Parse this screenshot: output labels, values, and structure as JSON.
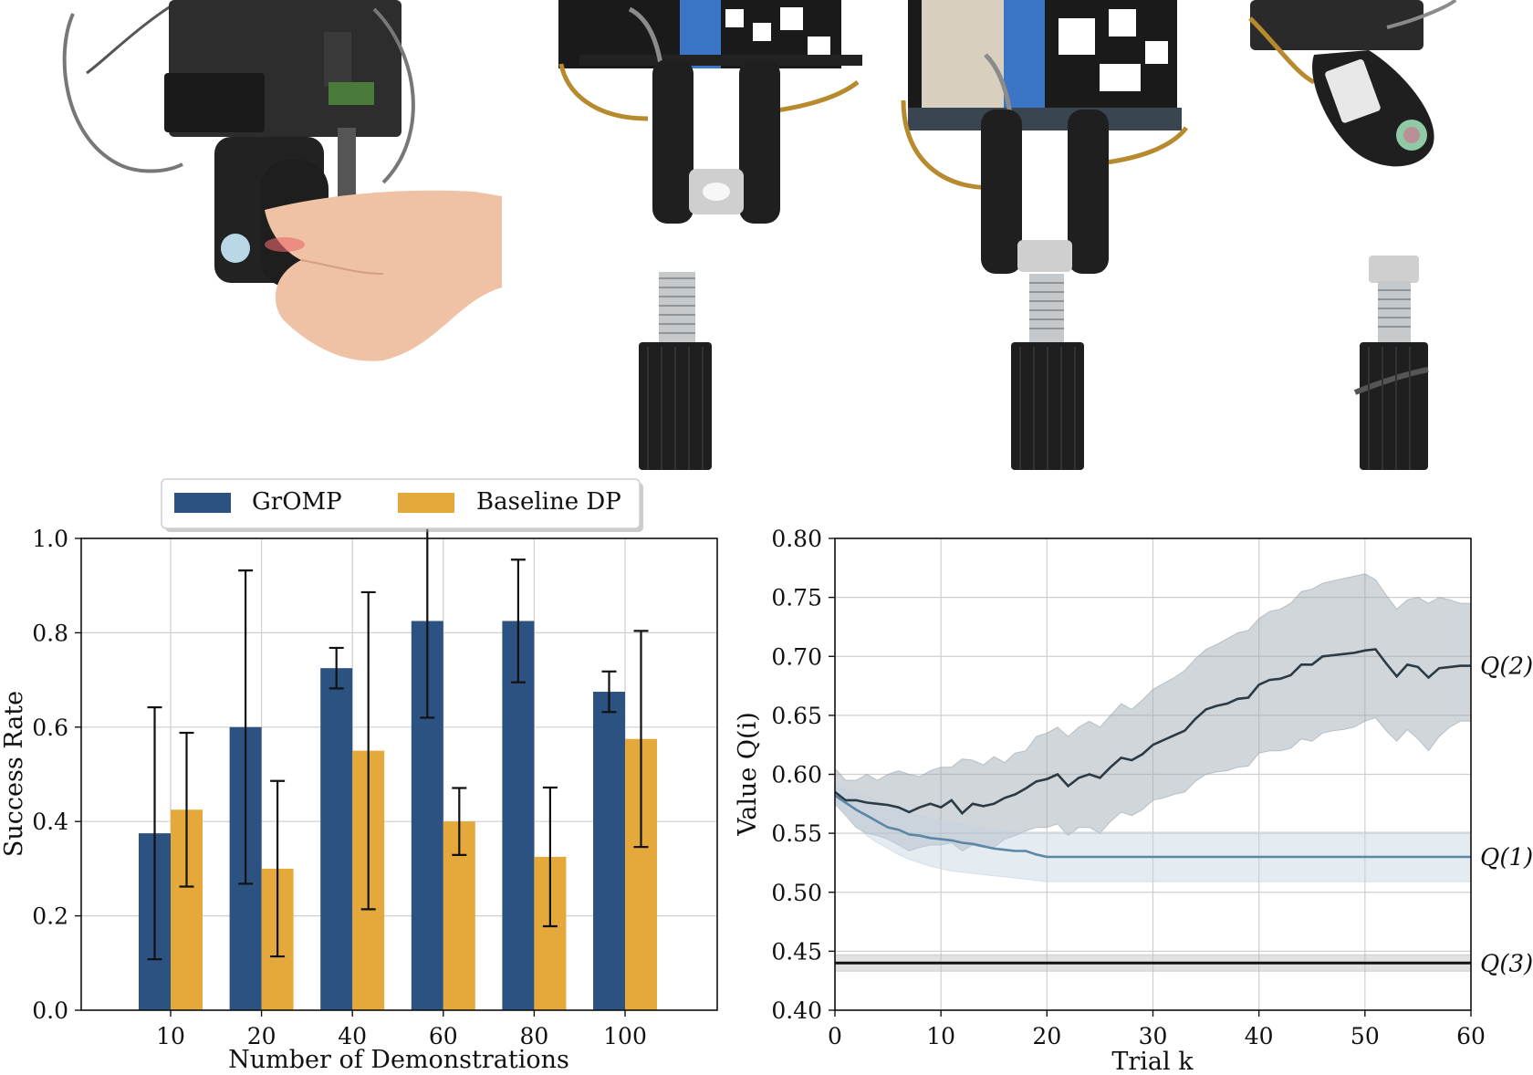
{
  "photos": [
    {
      "name": "photo-gripper-hand-probe"
    },
    {
      "name": "photo-gripper-nut-approach"
    },
    {
      "name": "photo-gripper-nut-on-bolt"
    },
    {
      "name": "photo-gripper-bolt-side"
    }
  ],
  "chart_data": [
    {
      "type": "bar",
      "xlabel": "Number of Demonstrations",
      "ylabel": "Success Rate",
      "ylim": [
        0,
        1.0
      ],
      "yticks": [
        "0.0",
        "0.2",
        "0.4",
        "0.6",
        "0.8",
        "1.0"
      ],
      "categories": [
        "10",
        "20",
        "40",
        "60",
        "80",
        "100"
      ],
      "grid": true,
      "legend_position": "top",
      "series": [
        {
          "name": "GrOMP",
          "color": "#2c5282",
          "values": [
            0.375,
            0.6,
            0.725,
            0.825,
            0.825,
            0.675
          ],
          "err_low": [
            0.108,
            0.268,
            0.682,
            0.62,
            0.695,
            0.632
          ],
          "err_high": [
            0.642,
            0.932,
            0.768,
            1.03,
            0.955,
            0.718
          ]
        },
        {
          "name": "Baseline DP",
          "color": "#e5a93b",
          "values": [
            0.425,
            0.3,
            0.55,
            0.4,
            0.325,
            0.575
          ],
          "err_low": [
            0.262,
            0.114,
            0.214,
            0.329,
            0.178,
            0.346
          ],
          "err_high": [
            0.588,
            0.486,
            0.886,
            0.471,
            0.472,
            0.804
          ]
        }
      ]
    },
    {
      "type": "line",
      "xlabel": "Trial k",
      "ylabel": "Value Q(i)",
      "xlim": [
        0,
        60
      ],
      "ylim": [
        0.4,
        0.8
      ],
      "xticks": [
        "0",
        "10",
        "20",
        "30",
        "40",
        "50",
        "60"
      ],
      "yticks": [
        "0.40",
        "0.45",
        "0.50",
        "0.55",
        "0.60",
        "0.65",
        "0.70",
        "0.75",
        "0.80"
      ],
      "grid": true,
      "series": [
        {
          "name": "Q(2)",
          "color": "#2b3a44",
          "band_color": "#9aa5ad",
          "x": [
            0,
            1,
            2,
            3,
            4,
            5,
            6,
            7,
            8,
            9,
            10,
            11,
            12,
            13,
            14,
            15,
            16,
            17,
            18,
            19,
            20,
            21,
            22,
            23,
            24,
            25,
            26,
            27,
            28,
            29,
            30,
            31,
            32,
            33,
            34,
            35,
            36,
            37,
            38,
            39,
            40,
            41,
            42,
            43,
            44,
            45,
            46,
            47,
            48,
            49,
            50,
            51,
            52,
            53,
            54,
            55,
            56,
            57,
            58,
            59,
            60
          ],
          "y": [
            0.585,
            0.578,
            0.578,
            0.576,
            0.575,
            0.574,
            0.572,
            0.568,
            0.572,
            0.575,
            0.572,
            0.578,
            0.567,
            0.575,
            0.573,
            0.575,
            0.58,
            0.583,
            0.588,
            0.594,
            0.596,
            0.6,
            0.59,
            0.597,
            0.6,
            0.597,
            0.606,
            0.614,
            0.612,
            0.617,
            0.625,
            0.629,
            0.633,
            0.637,
            0.647,
            0.655,
            0.658,
            0.66,
            0.664,
            0.665,
            0.676,
            0.68,
            0.681,
            0.684,
            0.693,
            0.693,
            0.7,
            0.701,
            0.702,
            0.703,
            0.705,
            0.706,
            0.694,
            0.683,
            0.693,
            0.691,
            0.682,
            0.69,
            0.691,
            0.692,
            0.692
          ],
          "lower": [
            0.575,
            0.565,
            0.555,
            0.55,
            0.548,
            0.545,
            0.54,
            0.535,
            0.538,
            0.54,
            0.54,
            0.542,
            0.535,
            0.54,
            0.538,
            0.538,
            0.545,
            0.548,
            0.552,
            0.555,
            0.555,
            0.558,
            0.548,
            0.555,
            0.555,
            0.55,
            0.56,
            0.568,
            0.565,
            0.57,
            0.578,
            0.58,
            0.583,
            0.585,
            0.594,
            0.6,
            0.602,
            0.603,
            0.606,
            0.607,
            0.618,
            0.62,
            0.62,
            0.622,
            0.63,
            0.628,
            0.635,
            0.637,
            0.638,
            0.64,
            0.645,
            0.648,
            0.637,
            0.628,
            0.638,
            0.63,
            0.62,
            0.632,
            0.64,
            0.645,
            0.645
          ],
          "upper": [
            0.605,
            0.595,
            0.595,
            0.6,
            0.595,
            0.6,
            0.603,
            0.6,
            0.598,
            0.603,
            0.606,
            0.606,
            0.613,
            0.612,
            0.608,
            0.615,
            0.61,
            0.618,
            0.62,
            0.632,
            0.635,
            0.64,
            0.632,
            0.64,
            0.645,
            0.64,
            0.65,
            0.66,
            0.655,
            0.663,
            0.672,
            0.677,
            0.682,
            0.688,
            0.698,
            0.706,
            0.71,
            0.715,
            0.72,
            0.722,
            0.732,
            0.738,
            0.74,
            0.745,
            0.755,
            0.757,
            0.762,
            0.764,
            0.766,
            0.768,
            0.77,
            0.765,
            0.752,
            0.74,
            0.748,
            0.75,
            0.745,
            0.75,
            0.748,
            0.745,
            0.745
          ]
        },
        {
          "name": "Q(1)",
          "color": "#5b87a6",
          "band_color": "#c4d3e0",
          "x": [
            0,
            1,
            2,
            3,
            4,
            5,
            6,
            7,
            8,
            9,
            10,
            11,
            12,
            13,
            14,
            15,
            16,
            17,
            18,
            19,
            20,
            30,
            40,
            50,
            60
          ],
          "y": [
            0.582,
            0.576,
            0.57,
            0.565,
            0.56,
            0.555,
            0.553,
            0.549,
            0.548,
            0.546,
            0.545,
            0.544,
            0.542,
            0.541,
            0.539,
            0.537,
            0.536,
            0.535,
            0.535,
            0.532,
            0.53,
            0.53,
            0.53,
            0.53,
            0.53
          ],
          "lower": [
            0.575,
            0.565,
            0.556,
            0.548,
            0.542,
            0.537,
            0.532,
            0.528,
            0.525,
            0.522,
            0.52,
            0.518,
            0.517,
            0.516,
            0.515,
            0.514,
            0.513,
            0.512,
            0.511,
            0.51,
            0.509,
            0.509,
            0.509,
            0.509,
            0.509
          ],
          "upper": [
            0.59,
            0.588,
            0.585,
            0.582,
            0.578,
            0.573,
            0.57,
            0.567,
            0.565,
            0.563,
            0.561,
            0.559,
            0.558,
            0.556,
            0.555,
            0.553,
            0.552,
            0.551,
            0.551,
            0.551,
            0.551,
            0.551,
            0.551,
            0.551,
            0.551
          ]
        },
        {
          "name": "Q(3)",
          "color": "#111111",
          "band_color": "#bdbdbd",
          "x": [
            0,
            60
          ],
          "y": [
            0.44,
            0.44
          ],
          "lower": [
            0.433,
            0.433
          ],
          "upper": [
            0.447,
            0.447
          ]
        }
      ]
    }
  ]
}
